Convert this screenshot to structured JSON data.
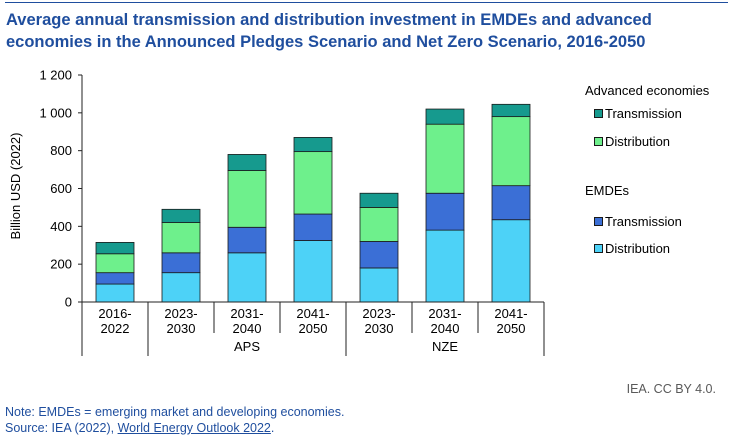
{
  "title": "Average annual transmission and distribution investment in EMDEs and advanced economies in the Announced Pledges Scenario and Net Zero Scenario, 2016-2050",
  "chart_data": {
    "type": "bar",
    "stacked": true,
    "ylabel": "Billion USD (2022)",
    "ylim": [
      0,
      1200
    ],
    "yticks": [
      0,
      200,
      400,
      600,
      800,
      1000,
      1200
    ],
    "ytick_labels": [
      "0",
      "200",
      "400",
      "600",
      "800",
      "1 000",
      "1 200"
    ],
    "grid": false,
    "legend_position": "right",
    "categories": [
      {
        "label": "2016-2022",
        "lines": [
          "2016-",
          "2022"
        ],
        "group": ""
      },
      {
        "label": "2023-2030",
        "lines": [
          "2023-",
          "2030"
        ],
        "group": "APS"
      },
      {
        "label": "2031-2040",
        "lines": [
          "2031-",
          "2040"
        ],
        "group": "APS"
      },
      {
        "label": "2041-2050",
        "lines": [
          "2041-",
          "2050"
        ],
        "group": "APS"
      },
      {
        "label": "2023-2030",
        "lines": [
          "2023-",
          "2030"
        ],
        "group": "NZE"
      },
      {
        "label": "2031-2040",
        "lines": [
          "2031-",
          "2040"
        ],
        "group": "NZE"
      },
      {
        "label": "2041-2050",
        "lines": [
          "2041-",
          "2050"
        ],
        "group": "NZE"
      }
    ],
    "groups": [
      "APS",
      "NZE"
    ],
    "series": [
      {
        "group": "EMDEs",
        "name": "Distribution",
        "color": "#4dd2f7",
        "values": [
          95,
          155,
          260,
          325,
          180,
          380,
          435
        ]
      },
      {
        "group": "EMDEs",
        "name": "Transmission",
        "color": "#3b6fd6",
        "values": [
          60,
          105,
          135,
          140,
          140,
          195,
          180
        ]
      },
      {
        "group": "Advanced economies",
        "name": "Distribution",
        "color": "#6ef08c",
        "values": [
          100,
          160,
          300,
          330,
          180,
          365,
          365
        ]
      },
      {
        "group": "Advanced economies",
        "name": "Transmission",
        "color": "#169a8e",
        "values": [
          60,
          70,
          85,
          75,
          75,
          80,
          65
        ]
      }
    ]
  },
  "legend": {
    "advanced_title": "Advanced economies",
    "advanced_transmission": "Transmission",
    "advanced_distribution": "Distribution",
    "emde_title": "EMDEs",
    "emde_transmission": "Transmission",
    "emde_distribution": "Distribution",
    "colors": {
      "advanced_transmission": "#169a8e",
      "advanced_distribution": "#6ef08c",
      "emde_transmission": "#3b6fd6",
      "emde_distribution": "#4dd2f7"
    }
  },
  "credit": "IEA. CC BY 4.0.",
  "note": "Note: EMDEs = emerging market and developing economies.",
  "source": {
    "prefix": "Source: IEA (2022), ",
    "link_text": "World Energy Outlook 2022",
    "suffix": "."
  }
}
